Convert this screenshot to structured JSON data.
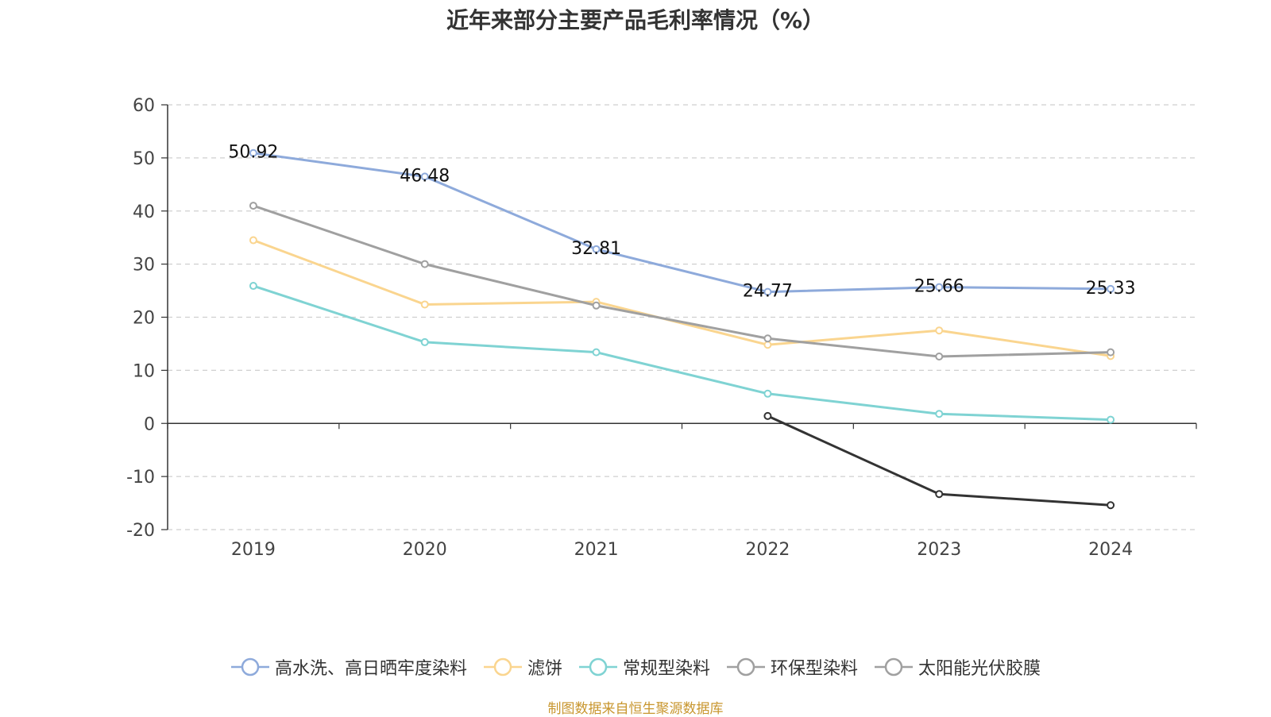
{
  "chart_data": {
    "type": "line",
    "title": "近年来部分主要产品毛利率情况（%）",
    "x": [
      "2019",
      "2020",
      "2021",
      "2022",
      "2023",
      "2024"
    ],
    "ylim": [
      -20,
      60
    ],
    "yticks": [
      60,
      50,
      40,
      30,
      20,
      10,
      0,
      -10,
      -20
    ],
    "grid": true,
    "legend_position": "bottom",
    "series": [
      {
        "name": "高水洗、高日晒牢度染料",
        "color": "#8eaadb",
        "values": [
          50.92,
          46.48,
          32.81,
          24.77,
          25.66,
          25.33
        ],
        "labels": [
          "50.92",
          "46.48",
          "32.81",
          "24.77",
          "25.66",
          "25.33"
        ]
      },
      {
        "name": "滤饼",
        "color": "#fad58f",
        "values": [
          34.5,
          22.4,
          22.9,
          14.8,
          17.5,
          12.7
        ]
      },
      {
        "name": "常规型染料",
        "color": "#7fd3d3",
        "values": [
          25.9,
          15.3,
          13.4,
          5.6,
          1.8,
          0.7
        ]
      },
      {
        "name": "环保型染料",
        "color": "#a0a0a0",
        "values": [
          41.0,
          30.0,
          22.2,
          16.0,
          12.6,
          13.4
        ]
      },
      {
        "name": "太阳能光伏胶膜",
        "color": "#333333",
        "legend_color": "#a0a0a0",
        "values": [
          null,
          null,
          null,
          1.4,
          -13.3,
          -15.4
        ]
      }
    ]
  },
  "source_text": "制图数据来自恒生聚源数据库"
}
